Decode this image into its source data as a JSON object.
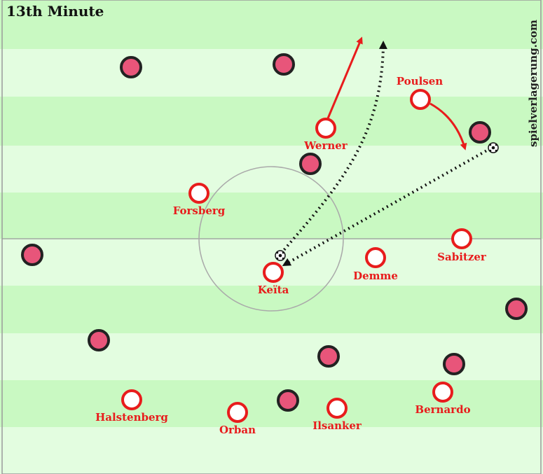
{
  "title": "13th Minute",
  "watermark": "spielverlagerung.com",
  "colors": {
    "stripe_light": "#e3fde0",
    "stripe_dark": "#c9f9c2",
    "team_red": "#e81c1c",
    "opponent_fill": "#e8557a",
    "opponent_stroke": "#222222",
    "run_arrow": "#e81c1c",
    "pass_arrow": "#111111"
  },
  "players": {
    "werner": "Werner",
    "poulsen": "Poulsen",
    "forsberg": "Forsberg",
    "sabitzer": "Sabitzer",
    "keita": "Keïta",
    "demme": "Demme",
    "halstenberg": "Halstenberg",
    "orban": "Orban",
    "ilsanker": "Ilsanker",
    "bernardo": "Bernardo"
  }
}
